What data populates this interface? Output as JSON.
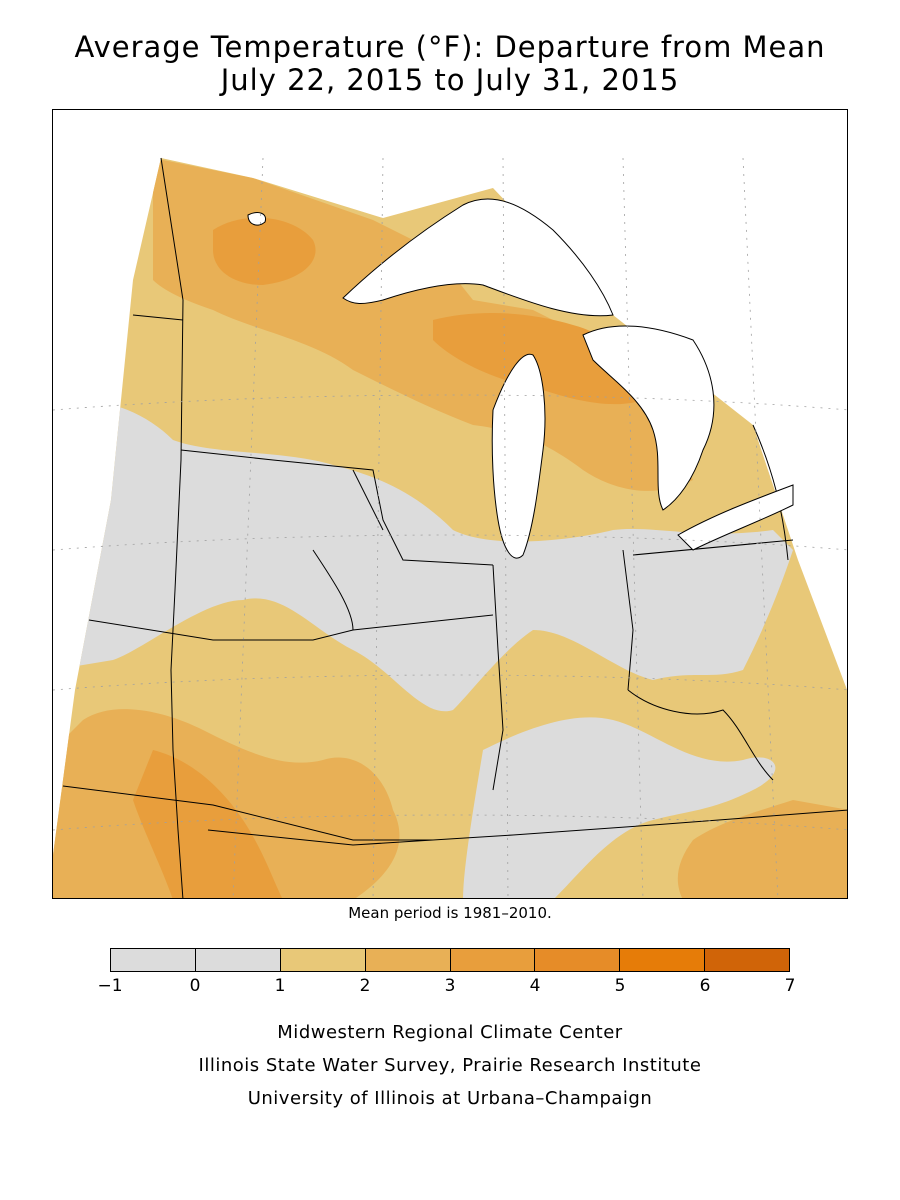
{
  "title_line1": "Average Temperature (°F): Departure from Mean",
  "title_line2": "July 22, 2015 to July 31, 2015",
  "mean_note": "Mean period is 1981–2010.",
  "legend": {
    "bins": [
      {
        "from": -1,
        "to": 0,
        "color": "#dcdcdc"
      },
      {
        "from": 0,
        "to": 1,
        "color": "#dcdcdc"
      },
      {
        "from": 1,
        "to": 2,
        "color": "#e8c878"
      },
      {
        "from": 2,
        "to": 3,
        "color": "#e8b056"
      },
      {
        "from": 3,
        "to": 4,
        "color": "#e89e3c"
      },
      {
        "from": 4,
        "to": 5,
        "color": "#e68c28"
      },
      {
        "from": 5,
        "to": 6,
        "color": "#e67c08"
      },
      {
        "from": 6,
        "to": 7,
        "color": "#d06408"
      }
    ],
    "ticks": [
      "−1",
      "0",
      "1",
      "2",
      "3",
      "4",
      "5",
      "6",
      "7"
    ]
  },
  "credits": [
    "Midwestern Regional Climate Center",
    "Illinois State Water Survey, Prairie Research Institute",
    "University of Illinois at Urbana–Champaign"
  ],
  "colors": {
    "cat_neg1_1": "#dcdcdc",
    "cat_1_2": "#e8c878",
    "cat_2_3": "#e8b056",
    "cat_3_4": "#e89e3c",
    "cat_4_5": "#e68c28"
  }
}
